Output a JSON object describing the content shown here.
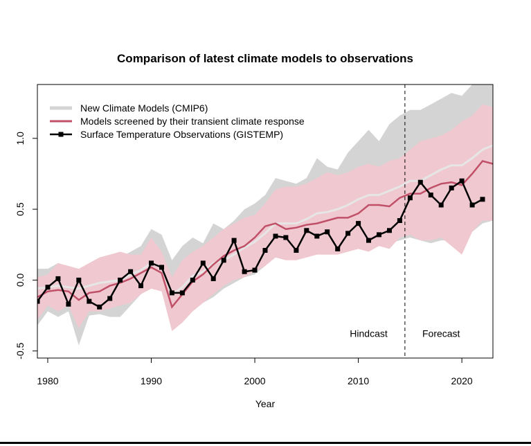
{
  "chart_data": {
    "type": "line",
    "title": "Comparison of latest climate models to observations",
    "xlabel": "Year",
    "ylabel": "",
    "xlim": [
      1979,
      2023
    ],
    "ylim": [
      -0.55,
      1.38
    ],
    "x_ticks": [
      "1980",
      "1990",
      "2000",
      "2010",
      "2020"
    ],
    "y_ticks": [
      "-0.5",
      "0.0",
      "0.5",
      "1.0"
    ],
    "grid": false,
    "legend_position": "top-left",
    "annotations": [
      {
        "text": "Hindcast",
        "x": 2011,
        "y": -0.4
      },
      {
        "text": "Forecast",
        "x": 2018,
        "y": -0.4
      }
    ],
    "divider_year": 2014.5,
    "colors": {
      "cmip6_band": "#d4d4d4",
      "screened_band": "#f0c8d0",
      "screened_line": "#c05068",
      "cmip6_mean": "#e6e6e6",
      "observations": "#000000"
    },
    "years": [
      1979,
      1980,
      1981,
      1982,
      1983,
      1984,
      1985,
      1986,
      1987,
      1988,
      1989,
      1990,
      1991,
      1992,
      1993,
      1994,
      1995,
      1996,
      1997,
      1998,
      1999,
      2000,
      2001,
      2002,
      2003,
      2004,
      2005,
      2006,
      2007,
      2008,
      2009,
      2010,
      2011,
      2012,
      2013,
      2014,
      2015,
      2016,
      2017,
      2018,
      2019,
      2020,
      2021,
      2022,
      2023
    ],
    "series": [
      {
        "name": "New Climate Models (CMIP6)",
        "kind": "band",
        "upper": [
          0.08,
          0.08,
          0.12,
          0.08,
          0.06,
          0.12,
          0.14,
          0.16,
          0.16,
          0.2,
          0.24,
          0.36,
          0.32,
          0.14,
          0.24,
          0.3,
          0.26,
          0.4,
          0.36,
          0.42,
          0.5,
          0.54,
          0.6,
          0.72,
          0.7,
          0.68,
          0.72,
          0.86,
          0.8,
          0.78,
          0.9,
          0.98,
          1.06,
          0.98,
          1.1,
          1.16,
          1.2,
          1.2,
          1.24,
          1.28,
          1.32,
          1.3,
          1.38,
          1.4,
          1.4
        ],
        "mean": [
          -0.06,
          -0.05,
          -0.04,
          -0.05,
          -0.06,
          -0.04,
          -0.02,
          -0.01,
          0.0,
          0.04,
          0.07,
          0.12,
          0.09,
          -0.1,
          -0.05,
          0.03,
          0.06,
          0.12,
          0.14,
          0.18,
          0.23,
          0.27,
          0.33,
          0.4,
          0.4,
          0.4,
          0.43,
          0.47,
          0.48,
          0.5,
          0.53,
          0.57,
          0.6,
          0.6,
          0.63,
          0.66,
          0.7,
          0.7,
          0.74,
          0.78,
          0.81,
          0.81,
          0.86,
          0.92,
          0.95
        ],
        "lower": [
          -0.32,
          -0.22,
          -0.26,
          -0.22,
          -0.46,
          -0.25,
          -0.24,
          -0.26,
          -0.26,
          -0.18,
          -0.1,
          -0.04,
          -0.04,
          -0.32,
          -0.28,
          -0.22,
          -0.16,
          -0.12,
          -0.06,
          -0.02,
          0.02,
          0.04,
          0.1,
          0.18,
          0.16,
          0.14,
          0.2,
          0.24,
          0.24,
          0.24,
          0.24,
          0.26,
          0.26,
          0.24,
          0.26,
          0.28,
          0.3,
          0.28,
          0.26,
          0.28,
          0.28,
          0.24,
          0.34,
          0.4,
          0.42
        ]
      },
      {
        "name": "Models screened by their transient climate response",
        "kind": "band+line",
        "upper": [
          0.02,
          0.04,
          0.12,
          0.1,
          0.08,
          0.12,
          0.16,
          0.18,
          0.2,
          0.18,
          0.18,
          0.3,
          0.2,
          0.02,
          0.14,
          0.2,
          0.24,
          0.3,
          0.36,
          0.4,
          0.44,
          0.46,
          0.54,
          0.64,
          0.66,
          0.66,
          0.68,
          0.72,
          0.76,
          0.74,
          0.76,
          0.8,
          0.82,
          0.8,
          0.84,
          0.86,
          0.92,
          0.98,
          1.0,
          1.02,
          1.06,
          1.12,
          1.16,
          1.24,
          1.22
        ],
        "mean": [
          -0.12,
          -0.08,
          -0.07,
          -0.08,
          -0.14,
          -0.09,
          -0.08,
          -0.04,
          -0.02,
          0.01,
          0.05,
          0.09,
          0.05,
          -0.19,
          -0.1,
          -0.01,
          0.04,
          0.11,
          0.17,
          0.21,
          0.24,
          0.3,
          0.38,
          0.4,
          0.36,
          0.37,
          0.39,
          0.4,
          0.42,
          0.44,
          0.44,
          0.47,
          0.53,
          0.53,
          0.52,
          0.58,
          0.61,
          0.61,
          0.65,
          0.68,
          0.69,
          0.67,
          0.75,
          0.84,
          0.82
        ],
        "lower": [
          -0.28,
          -0.18,
          -0.22,
          -0.18,
          -0.34,
          -0.22,
          -0.22,
          -0.2,
          -0.18,
          -0.16,
          -0.1,
          -0.06,
          -0.08,
          -0.36,
          -0.3,
          -0.22,
          -0.16,
          -0.1,
          -0.04,
          0.0,
          0.02,
          0.06,
          0.1,
          0.16,
          0.14,
          0.14,
          0.16,
          0.18,
          0.18,
          0.18,
          0.2,
          0.22,
          0.2,
          0.24,
          0.22,
          0.3,
          0.32,
          0.28,
          0.28,
          0.3,
          0.24,
          0.18,
          0.34,
          0.42,
          0.42
        ]
      },
      {
        "name": "Surface Temperature Observations (GISTEMP)",
        "kind": "line+markers",
        "values": [
          -0.15,
          -0.05,
          0.01,
          -0.17,
          0.0,
          -0.15,
          -0.19,
          -0.13,
          0.0,
          0.06,
          -0.04,
          0.12,
          0.09,
          -0.09,
          -0.09,
          0.0,
          0.12,
          0.01,
          0.14,
          0.28,
          0.06,
          0.07,
          0.21,
          0.31,
          0.3,
          0.21,
          0.35,
          0.31,
          0.34,
          0.22,
          0.33,
          0.4,
          0.28,
          0.32,
          0.35,
          0.42,
          0.58,
          0.69,
          0.6,
          0.53,
          0.65,
          0.7,
          0.53,
          0.57,
          null
        ]
      }
    ]
  }
}
